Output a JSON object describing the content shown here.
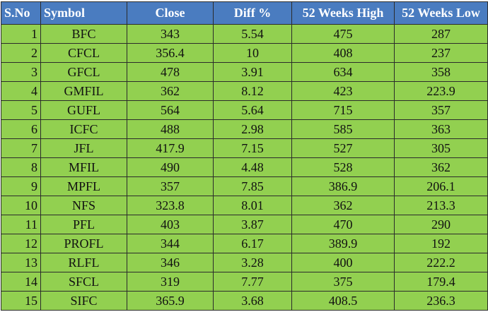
{
  "table": {
    "header": [
      "S.No",
      "Symbol",
      "Close",
      "Diff %",
      "52 Weeks High",
      "52 Weeks Low"
    ],
    "rows": [
      [
        "1",
        "BFC",
        "343",
        "5.54",
        "475",
        "287"
      ],
      [
        "2",
        "CFCL",
        "356.4",
        "10",
        "408",
        "237"
      ],
      [
        "3",
        "GFCL",
        "478",
        "3.91",
        "634",
        "358"
      ],
      [
        "4",
        "GMFIL",
        "362",
        "8.12",
        "423",
        "223.9"
      ],
      [
        "5",
        "GUFL",
        "564",
        "5.64",
        "715",
        "357"
      ],
      [
        "6",
        "ICFC",
        "488",
        "2.98",
        "585",
        "363"
      ],
      [
        "7",
        "JFL",
        "417.9",
        "7.15",
        "527",
        "305"
      ],
      [
        "8",
        "MFIL",
        "490",
        "4.48",
        "528",
        "362"
      ],
      [
        "9",
        "MPFL",
        "357",
        "7.85",
        "386.9",
        "206.1"
      ],
      [
        "10",
        "NFS",
        "323.8",
        "8.01",
        "362",
        "213.3"
      ],
      [
        "11",
        "PFL",
        "403",
        "3.87",
        "470",
        "290"
      ],
      [
        "12",
        "PROFL",
        "344",
        "6.17",
        "389.9",
        "192"
      ],
      [
        "13",
        "RLFL",
        "346",
        "3.28",
        "400",
        "222.2"
      ],
      [
        "14",
        "SFCL",
        "319",
        "7.77",
        "375",
        "179.4"
      ],
      [
        "15",
        "SIFC",
        "365.9",
        "3.68",
        "408.5",
        "236.3"
      ]
    ]
  }
}
